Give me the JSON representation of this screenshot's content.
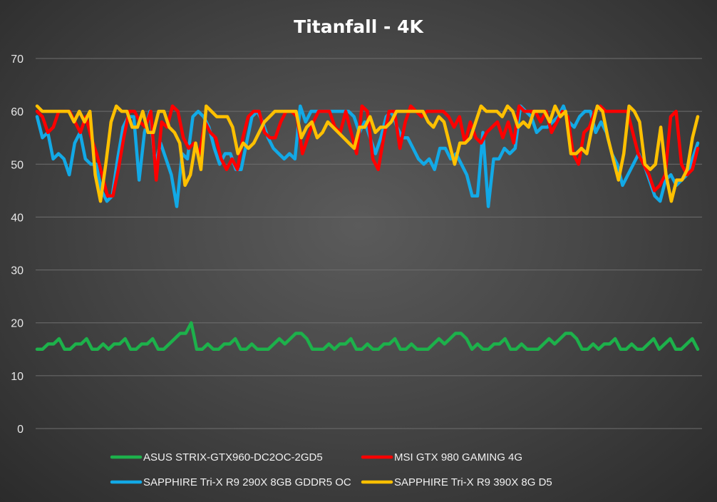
{
  "chart_data": {
    "type": "line",
    "title": "Titanfall  - 4K",
    "xlabel": "",
    "ylabel": "",
    "ylim": [
      0,
      70
    ],
    "yticks": [
      0,
      10,
      20,
      30,
      40,
      50,
      60,
      70
    ],
    "grid": true,
    "legend_position": "bottom",
    "series": [
      {
        "name": "ASUS STRIX-GTX960-DC2OC-2GD5",
        "color": "#1db14b",
        "values": [
          15,
          15,
          16,
          16,
          17,
          15,
          15,
          16,
          16,
          17,
          15,
          15,
          16,
          15,
          16,
          16,
          17,
          15,
          15,
          16,
          16,
          17,
          15,
          15,
          16,
          17,
          18,
          18,
          20,
          15,
          15,
          16,
          15,
          15,
          16,
          16,
          17,
          15,
          15,
          16,
          15,
          15,
          15,
          16,
          17,
          16,
          17,
          18,
          18,
          17,
          15,
          15,
          15,
          16,
          15,
          16,
          16,
          17,
          15,
          15,
          16,
          15,
          15,
          16,
          16,
          17,
          15,
          15,
          16,
          15,
          15,
          15,
          16,
          17,
          16,
          17,
          18,
          18,
          17,
          15,
          16,
          15,
          15,
          16,
          16,
          17,
          15,
          15,
          16,
          15,
          15,
          15,
          16,
          17,
          16,
          17,
          18,
          18,
          17,
          15,
          15,
          16,
          15,
          16,
          16,
          17,
          15,
          15,
          16,
          15,
          15,
          16,
          17,
          15,
          16,
          17,
          15,
          15,
          16,
          17,
          15
        ]
      },
      {
        "name": "MSI GTX 980 GAMING 4G",
        "color": "#ff0000",
        "values": [
          60,
          59,
          56,
          57,
          60,
          60,
          60,
          58,
          56,
          59,
          55,
          52,
          48,
          44,
          44,
          49,
          55,
          60,
          60,
          58,
          57,
          60,
          47,
          58,
          57,
          61,
          60,
          55,
          53,
          54,
          52,
          58,
          56,
          55,
          51,
          49,
          51,
          49,
          55,
          59,
          60,
          60,
          56,
          55,
          55,
          58,
          60,
          60,
          59,
          52,
          55,
          58,
          60,
          60,
          60,
          57,
          56,
          60,
          56,
          52,
          61,
          60,
          51,
          49,
          55,
          60,
          60,
          53,
          58,
          61,
          60,
          59,
          60,
          60,
          60,
          60,
          59,
          57,
          59,
          54,
          58,
          55,
          54,
          56,
          57,
          58,
          55,
          58,
          54,
          61,
          60,
          60,
          60,
          58,
          60,
          56,
          58,
          60,
          59,
          52,
          50,
          56,
          57,
          60,
          61,
          60,
          60,
          60,
          60,
          60,
          56,
          52,
          50,
          48,
          45,
          46,
          48,
          59,
          60,
          50,
          48,
          49,
          53
        ]
      },
      {
        "name": "SAPPHIRE Tri-X R9 290X 8GB GDDR5 OC",
        "color": "#12a9e6",
        "values": [
          59,
          55,
          56,
          51,
          52,
          51,
          48,
          54,
          56,
          51,
          50,
          50,
          45,
          43,
          44,
          51,
          57,
          59,
          59,
          47,
          56,
          60,
          50,
          54,
          51,
          48,
          42,
          52,
          51,
          59,
          60,
          59,
          57,
          53,
          50,
          52,
          52,
          49,
          49,
          54,
          59,
          60,
          58,
          55,
          53,
          52,
          51,
          52,
          51,
          61,
          58,
          60,
          60,
          60,
          60,
          60,
          60,
          60,
          60,
          59,
          56,
          58,
          55,
          52,
          55,
          59,
          60,
          57,
          55,
          55,
          53,
          51,
          50,
          51,
          49,
          53,
          53,
          51,
          52,
          50,
          48,
          44,
          44,
          56,
          42,
          51,
          51,
          53,
          52,
          53,
          61,
          60,
          59,
          56,
          57,
          57,
          58,
          59,
          61,
          58,
          57,
          59,
          60,
          60,
          56,
          58,
          56,
          52,
          50,
          46,
          48,
          50,
          52,
          50,
          47,
          44,
          43,
          47,
          48,
          46,
          47,
          48,
          51,
          54
        ]
      },
      {
        "name": "SAPPHIRE Tri-X R9 390X 8G D5",
        "color": "#ffc000",
        "values": [
          61,
          60,
          60,
          60,
          60,
          60,
          60,
          58,
          60,
          58,
          60,
          48,
          43,
          50,
          58,
          61,
          60,
          60,
          57,
          57,
          60,
          56,
          56,
          60,
          60,
          57,
          56,
          54,
          46,
          48,
          54,
          49,
          61,
          60,
          59,
          59,
          59,
          57,
          52,
          54,
          53,
          54,
          56,
          58,
          59,
          60,
          60,
          60,
          60,
          60,
          55,
          57,
          58,
          55,
          56,
          58,
          57,
          56,
          55,
          54,
          53,
          57,
          57,
          59,
          56,
          57,
          57,
          58,
          60,
          60,
          60,
          60,
          60,
          60,
          58,
          57,
          59,
          58,
          54,
          50,
          54,
          54,
          55,
          58,
          61,
          60,
          60,
          60,
          59,
          61,
          60,
          57,
          58,
          57,
          60,
          60,
          60,
          58,
          61,
          59,
          60,
          52,
          52,
          53,
          52,
          57,
          61,
          60,
          55,
          51,
          47,
          52,
          61,
          60,
          58,
          50,
          49,
          50,
          57,
          48,
          43,
          47,
          47,
          49,
          55,
          59
        ]
      }
    ]
  }
}
